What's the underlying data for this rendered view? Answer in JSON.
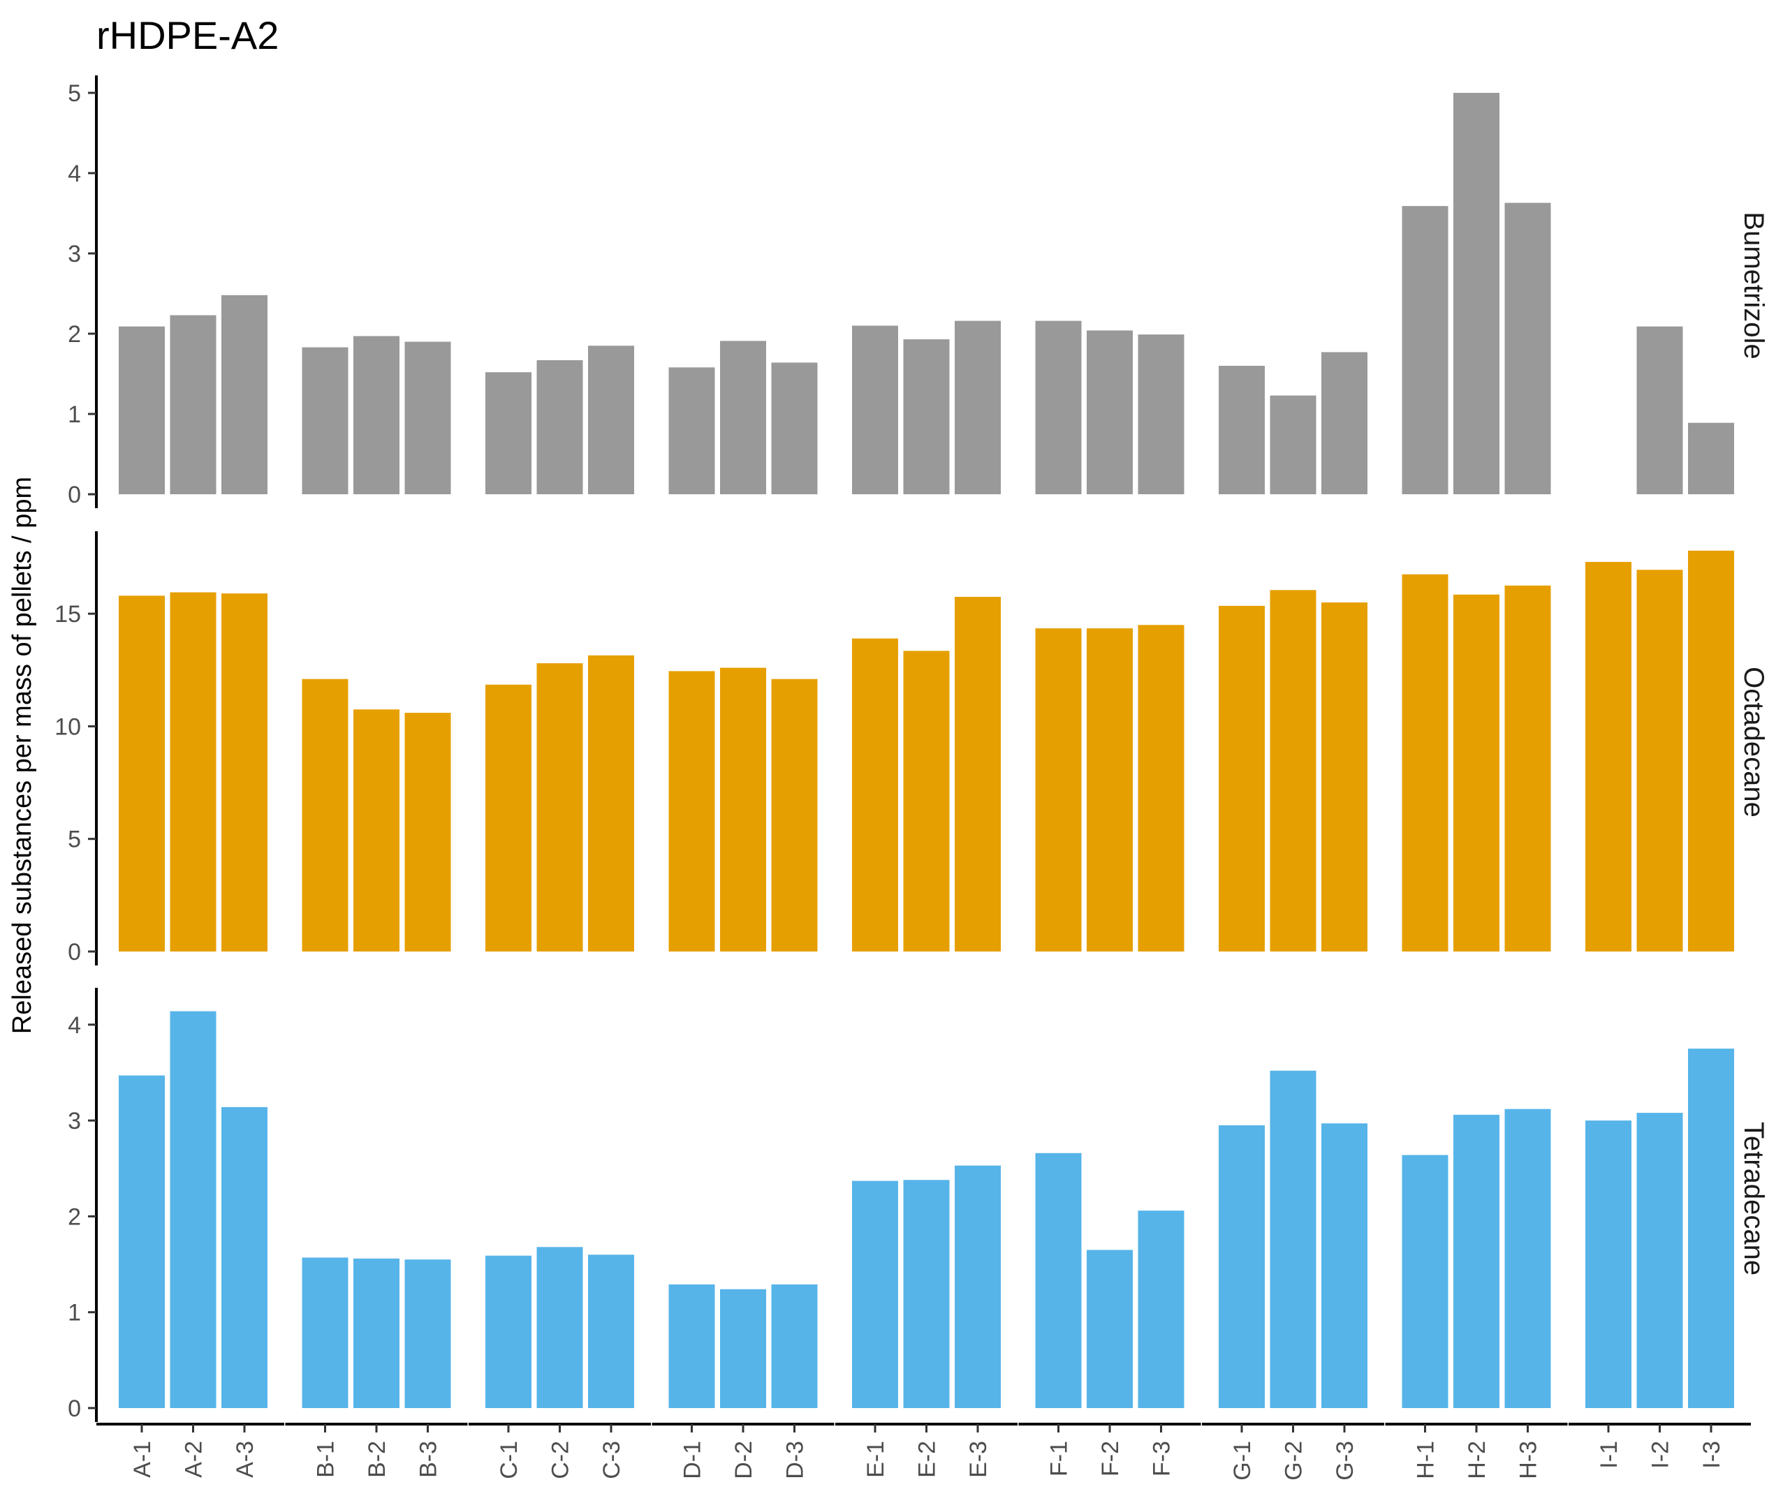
{
  "chart_data": {
    "type": "bar",
    "title": "rHDPE-A2",
    "ylabel": "Released substances per mass of pellets / ppm",
    "xlabel": "",
    "groups": [
      "A",
      "B",
      "C",
      "D",
      "E",
      "F",
      "G",
      "H",
      "I"
    ],
    "categories": [
      "A-1",
      "A-2",
      "A-3",
      "B-1",
      "B-2",
      "B-3",
      "C-1",
      "C-2",
      "C-3",
      "D-1",
      "D-2",
      "D-3",
      "E-1",
      "E-2",
      "E-3",
      "F-1",
      "F-2",
      "F-3",
      "G-1",
      "G-2",
      "G-3",
      "H-1",
      "H-2",
      "H-3",
      "I-1",
      "I-2",
      "I-3"
    ],
    "panels": [
      {
        "name": "Bumetrizole",
        "color": "#999999",
        "ylim": [
          0,
          5.2
        ],
        "yticks": [
          0,
          1,
          2,
          3,
          4,
          5
        ],
        "values": [
          2.09,
          2.23,
          2.48,
          1.83,
          1.97,
          1.9,
          1.52,
          1.67,
          1.85,
          1.58,
          1.91,
          1.64,
          2.1,
          1.93,
          2.16,
          2.16,
          2.04,
          1.99,
          1.6,
          1.23,
          1.77,
          3.59,
          5.0,
          3.63,
          null,
          2.09,
          0.89
        ]
      },
      {
        "name": "Octadecane",
        "color": "#E69F00",
        "ylim": [
          0,
          18.6
        ],
        "yticks": [
          0,
          5,
          10,
          15
        ],
        "values": [
          15.8,
          15.95,
          15.9,
          12.1,
          10.75,
          10.6,
          11.85,
          12.8,
          13.15,
          12.45,
          12.6,
          12.1,
          13.9,
          13.35,
          15.75,
          14.35,
          14.35,
          14.5,
          15.35,
          16.05,
          15.5,
          16.75,
          15.85,
          16.25,
          17.3,
          16.95,
          17.8
        ]
      },
      {
        "name": "Tetradecane",
        "color": "#56B4E9",
        "ylim": [
          0,
          4.37
        ],
        "yticks": [
          0,
          1,
          2,
          3,
          4
        ],
        "values": [
          3.47,
          4.14,
          3.14,
          1.57,
          1.56,
          1.55,
          1.59,
          1.68,
          1.6,
          1.29,
          1.24,
          1.29,
          2.37,
          2.38,
          2.53,
          2.66,
          1.65,
          2.06,
          2.95,
          3.52,
          2.97,
          2.64,
          3.06,
          3.12,
          3.0,
          3.08,
          3.75
        ]
      }
    ]
  }
}
